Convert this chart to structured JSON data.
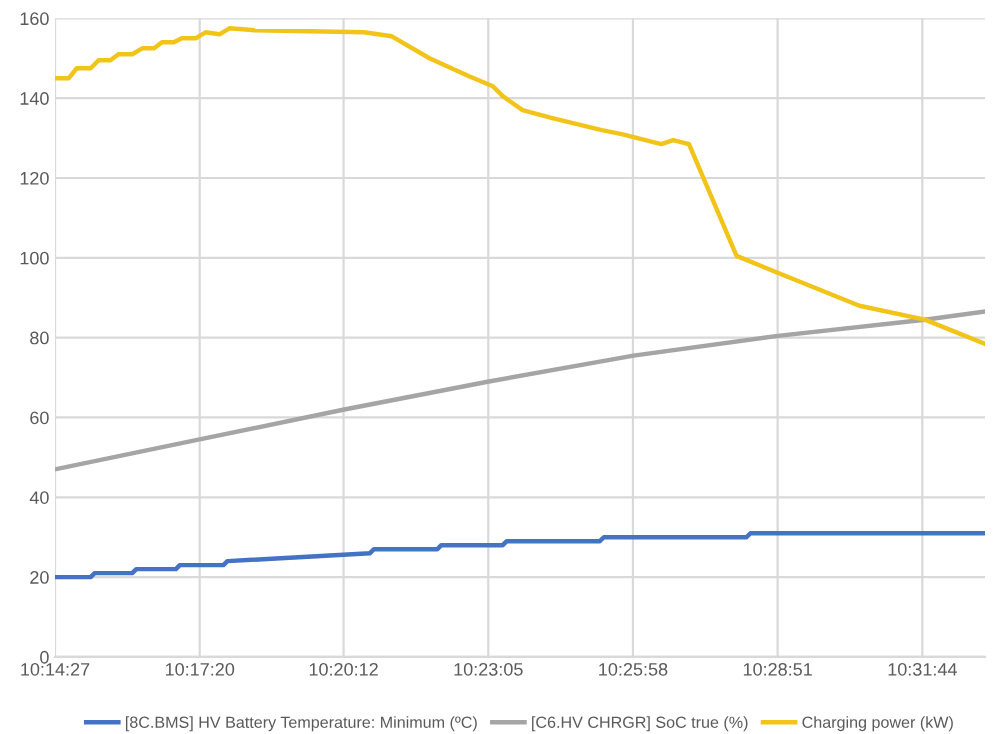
{
  "chart_data": {
    "type": "line",
    "xlim": [
      10.24083,
      10.5497
    ],
    "xticks": [
      {
        "value": 10.24083,
        "label": "10:14:27"
      },
      {
        "value": 10.28889,
        "label": "10:17:20"
      },
      {
        "value": 10.33667,
        "label": "10:20:12"
      },
      {
        "value": 10.38472,
        "label": "10:23:05"
      },
      {
        "value": 10.43278,
        "label": "10:25:58"
      },
      {
        "value": 10.48083,
        "label": "10:28:51"
      },
      {
        "value": 10.52889,
        "label": "10:31:44"
      }
    ],
    "ylim": [
      0,
      160
    ],
    "yticks": [
      0,
      20,
      40,
      60,
      80,
      100,
      120,
      140,
      160
    ],
    "grid": true,
    "legend": "bottom",
    "marker": "none",
    "line_style": "solid",
    "series": [
      {
        "name": "[8C.BMS] HV Battery Temperature: Minimum (ºC)",
        "color": "#4472c4",
        "x": [
          10.24083,
          10.25267,
          10.25399,
          10.26649,
          10.26781,
          10.28097,
          10.28228,
          10.29676,
          10.29808,
          10.34545,
          10.34677,
          10.36783,
          10.36914,
          10.38954,
          10.39086,
          10.42178,
          10.4231,
          10.47048,
          10.47179,
          10.54944
        ],
        "values": [
          20,
          20,
          21,
          21,
          22,
          22,
          23,
          23,
          24,
          26,
          27,
          27,
          28,
          28,
          29,
          29,
          30,
          30,
          31,
          31
        ]
      },
      {
        "name": "[C6.HV CHRGR] SoC true (%)",
        "color": "#a5a5a5",
        "x": [
          10.24083,
          10.28886,
          10.3369,
          10.38493,
          10.43297,
          10.48166,
          10.5297,
          10.54944
        ],
        "values": [
          47,
          54.5,
          62,
          69,
          75.5,
          80.5,
          84.5,
          86.5
        ]
      },
      {
        "name": "Charging power (kW)",
        "color": "#f2c41a",
        "x": [
          10.24083,
          10.24544,
          10.24807,
          10.25268,
          10.25531,
          10.25925,
          10.26189,
          10.2665,
          10.26978,
          10.27373,
          10.27636,
          10.28031,
          10.28294,
          10.28755,
          10.29084,
          10.29544,
          10.29873,
          10.30729,
          10.34347,
          10.35269,
          10.36519,
          10.37835,
          10.38625,
          10.38954,
          10.39612,
          10.40599,
          10.42244,
          10.42902,
          10.44218,
          10.44613,
          10.45139,
          10.46719,
          10.48166,
          10.50798,
          10.5297,
          10.54944
        ],
        "values": [
          145,
          145,
          147.5,
          147.5,
          149.5,
          149.5,
          151,
          151,
          152.5,
          152.5,
          154,
          154,
          155,
          155,
          156.5,
          156,
          157.5,
          157,
          156.5,
          155.5,
          150,
          145.5,
          143,
          140.5,
          137,
          135,
          132,
          131,
          128.5,
          129.5,
          128.5,
          100.5,
          96,
          88,
          84.5,
          78.5
        ]
      }
    ]
  }
}
